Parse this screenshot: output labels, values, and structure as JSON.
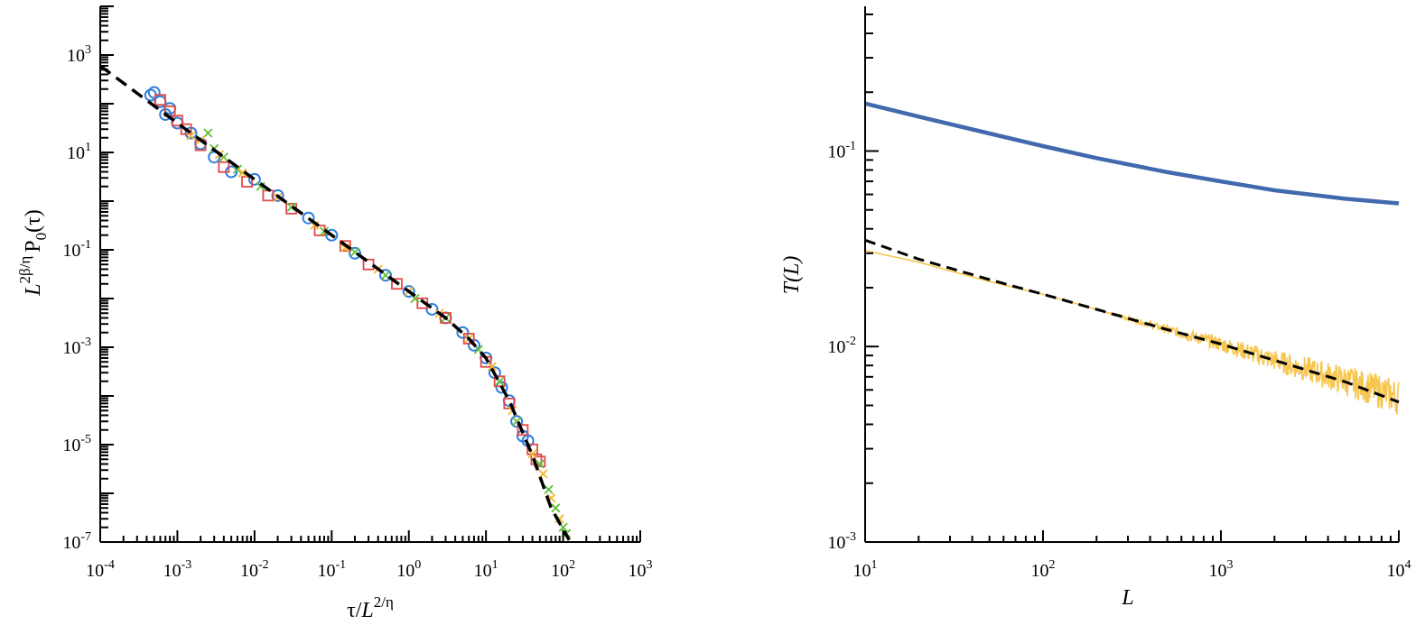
{
  "colors": {
    "axis": "#000000",
    "fit": "#000000",
    "blue_circles": "#2f7fdc",
    "red_squares": "#e04a4a",
    "green_crosses": "#5fbf3a",
    "orange_crosses": "#f2b830",
    "blue_line": "#4169ad",
    "yellow_line": "#f6c64f"
  },
  "chart_data": [
    {
      "type": "scatter",
      "title": "",
      "xlabel": {
        "base": "τ/",
        "L": "L",
        "sup": "2/η"
      },
      "ylabel": {
        "L": "L",
        "sup": "2β/η",
        "P": "P",
        "sub": "0",
        "arg": "(τ)"
      },
      "xscale": "log",
      "yscale": "log",
      "xlim": [
        0.0001,
        1000
      ],
      "ylim": [
        1e-07,
        10000
      ],
      "x_ticks": [
        {
          "value": 0.0001,
          "mantissa": "10",
          "exp": "-4"
        },
        {
          "value": 0.001,
          "mantissa": "10",
          "exp": "-3"
        },
        {
          "value": 0.01,
          "mantissa": "10",
          "exp": "-2"
        },
        {
          "value": 0.1,
          "mantissa": "10",
          "exp": "-1"
        },
        {
          "value": 1,
          "mantissa": "10",
          "exp": "0"
        },
        {
          "value": 10,
          "mantissa": "10",
          "exp": "1"
        },
        {
          "value": 100,
          "mantissa": "10",
          "exp": "2"
        },
        {
          "value": 1000,
          "mantissa": "10",
          "exp": "3"
        }
      ],
      "y_ticks": [
        {
          "value": 1e-07,
          "mantissa": "10",
          "exp": "-7"
        },
        {
          "value": 1e-05,
          "mantissa": "10",
          "exp": "-5"
        },
        {
          "value": 0.001,
          "mantissa": "10",
          "exp": "-3"
        },
        {
          "value": 0.1,
          "mantissa": "10",
          "exp": "-1"
        },
        {
          "value": 10,
          "mantissa": "10",
          "exp": "1"
        },
        {
          "value": 1000,
          "mantissa": "10",
          "exp": "3"
        }
      ],
      "fit_curve": {
        "style": "dashed",
        "points": [
          [
            0.0001,
            600
          ],
          [
            0.001,
            40
          ],
          [
            0.01,
            2.8
          ],
          [
            0.1,
            0.2
          ],
          [
            1,
            0.014
          ],
          [
            3,
            0.004
          ],
          [
            6,
            0.0015
          ],
          [
            10,
            0.0006
          ],
          [
            20,
            8e-05
          ],
          [
            40,
            6e-06
          ],
          [
            70,
            5e-07
          ],
          [
            120,
            1.1e-07
          ]
        ]
      },
      "series": [
        {
          "marker": "circle",
          "color": "blue_circles",
          "points": [
            [
              0.00045,
              150
            ],
            [
              0.0005,
              170
            ],
            [
              0.0006,
              110
            ],
            [
              0.0007,
              60
            ],
            [
              0.0008,
              80
            ],
            [
              0.001,
              40
            ],
            [
              0.0015,
              25
            ],
            [
              0.002,
              15
            ],
            [
              0.003,
              8
            ],
            [
              0.005,
              4
            ],
            [
              0.01,
              2.8
            ],
            [
              0.02,
              1.3
            ],
            [
              0.05,
              0.45
            ],
            [
              0.1,
              0.2
            ],
            [
              0.2,
              0.085
            ],
            [
              0.5,
              0.03
            ],
            [
              1,
              0.014
            ],
            [
              2,
              0.006
            ],
            [
              3,
              0.004
            ],
            [
              5,
              0.002
            ],
            [
              7,
              0.0011
            ],
            [
              10,
              0.0006
            ],
            [
              13,
              0.0003
            ],
            [
              16,
              0.00015
            ],
            [
              20,
              8e-05
            ],
            [
              25,
              3e-05
            ],
            [
              30,
              1.5e-05
            ],
            [
              35,
              1.2e-05
            ]
          ]
        },
        {
          "marker": "square",
          "color": "red_squares",
          "points": [
            [
              0.0006,
              120
            ],
            [
              0.0008,
              70
            ],
            [
              0.001,
              45
            ],
            [
              0.0013,
              30
            ],
            [
              0.002,
              14
            ],
            [
              0.004,
              5
            ],
            [
              0.008,
              2.5
            ],
            [
              0.015,
              1.3
            ],
            [
              0.03,
              0.7
            ],
            [
              0.07,
              0.25
            ],
            [
              0.15,
              0.12
            ],
            [
              0.3,
              0.05
            ],
            [
              0.7,
              0.02
            ],
            [
              1.5,
              0.008
            ],
            [
              3,
              0.004
            ],
            [
              6,
              0.0015
            ],
            [
              10,
              0.0005
            ],
            [
              15,
              0.0002
            ],
            [
              20,
              7e-05
            ],
            [
              30,
              2e-05
            ],
            [
              40,
              8e-06
            ],
            [
              45,
              5e-06
            ],
            [
              50,
              4.5e-06
            ]
          ]
        },
        {
          "marker": "cross",
          "color": "green_crosses",
          "points": [
            [
              0.0025,
              25
            ],
            [
              0.003,
              12
            ],
            [
              0.004,
              8
            ],
            [
              0.006,
              4.5
            ],
            [
              0.012,
              2
            ],
            [
              0.03,
              0.75
            ],
            [
              0.08,
              0.24
            ],
            [
              0.2,
              0.09
            ],
            [
              0.5,
              0.03
            ],
            [
              1.2,
              0.01
            ],
            [
              3,
              0.004
            ],
            [
              8,
              0.0009
            ],
            [
              15,
              0.0002
            ],
            [
              25,
              3e-05
            ],
            [
              50,
              4e-06
            ],
            [
              65,
              1.2e-06
            ],
            [
              80,
              5e-07
            ],
            [
              100,
              2e-07
            ],
            [
              110,
              1.5e-07
            ]
          ]
        },
        {
          "marker": "cross",
          "color": "orange_crosses",
          "points": [
            [
              0.0015,
              22
            ],
            [
              0.002,
              18
            ],
            [
              0.0035,
              9
            ],
            [
              0.007,
              3.8
            ],
            [
              0.02,
              1.2
            ],
            [
              0.06,
              0.32
            ],
            [
              0.15,
              0.11
            ],
            [
              0.4,
              0.04
            ],
            [
              1,
              0.014
            ],
            [
              2.5,
              0.005
            ],
            [
              6,
              0.0015
            ],
            [
              12,
              0.0004
            ],
            [
              22,
              5e-05
            ],
            [
              40,
              6.5e-06
            ],
            [
              55,
              2.5e-06
            ],
            [
              70,
              8e-07
            ],
            [
              90,
              3e-07
            ]
          ]
        }
      ]
    },
    {
      "type": "line",
      "title": "",
      "xlabel": "L",
      "ylabel": "T(L)",
      "xscale": "log",
      "yscale": "log",
      "xlim": [
        10,
        10000
      ],
      "ylim": [
        0.001,
        0.55
      ],
      "x_ticks": [
        {
          "value": 10,
          "mantissa": "10",
          "exp": "1"
        },
        {
          "value": 100,
          "mantissa": "10",
          "exp": "2"
        },
        {
          "value": 1000,
          "mantissa": "10",
          "exp": "3"
        },
        {
          "value": 10000,
          "mantissa": "10",
          "exp": "4"
        }
      ],
      "y_ticks": [
        {
          "value": 0.001,
          "mantissa": "10",
          "exp": "-3"
        },
        {
          "value": 0.01,
          "mantissa": "10",
          "exp": "-2"
        },
        {
          "value": 0.1,
          "mantissa": "10",
          "exp": "-1"
        }
      ],
      "series": [
        {
          "style": "solid-thick",
          "color": "blue_line",
          "points": [
            [
              10,
              0.175
            ],
            [
              20,
              0.15
            ],
            [
              50,
              0.123
            ],
            [
              100,
              0.106
            ],
            [
              200,
              0.092
            ],
            [
              500,
              0.078
            ],
            [
              1000,
              0.07
            ],
            [
              2000,
              0.063
            ],
            [
              5000,
              0.057
            ],
            [
              10000,
              0.054
            ]
          ]
        },
        {
          "style": "solid-noisy",
          "color": "yellow_line",
          "points": [
            [
              10,
              0.031
            ],
            [
              20,
              0.027
            ],
            [
              50,
              0.0215
            ],
            [
              100,
              0.0185
            ],
            [
              200,
              0.0155
            ],
            [
              500,
              0.0122
            ],
            [
              1000,
              0.0103
            ],
            [
              2000,
              0.0085
            ],
            [
              5000,
              0.0067
            ],
            [
              10000,
              0.0055
            ]
          ]
        },
        {
          "style": "dashed",
          "color": "fit",
          "points": [
            [
              10,
              0.035
            ],
            [
              20,
              0.028
            ],
            [
              50,
              0.022
            ],
            [
              100,
              0.0185
            ],
            [
              200,
              0.0155
            ],
            [
              500,
              0.0122
            ],
            [
              1000,
              0.0103
            ],
            [
              2000,
              0.0085
            ],
            [
              5000,
              0.0066
            ],
            [
              10000,
              0.0052
            ]
          ]
        }
      ]
    }
  ]
}
